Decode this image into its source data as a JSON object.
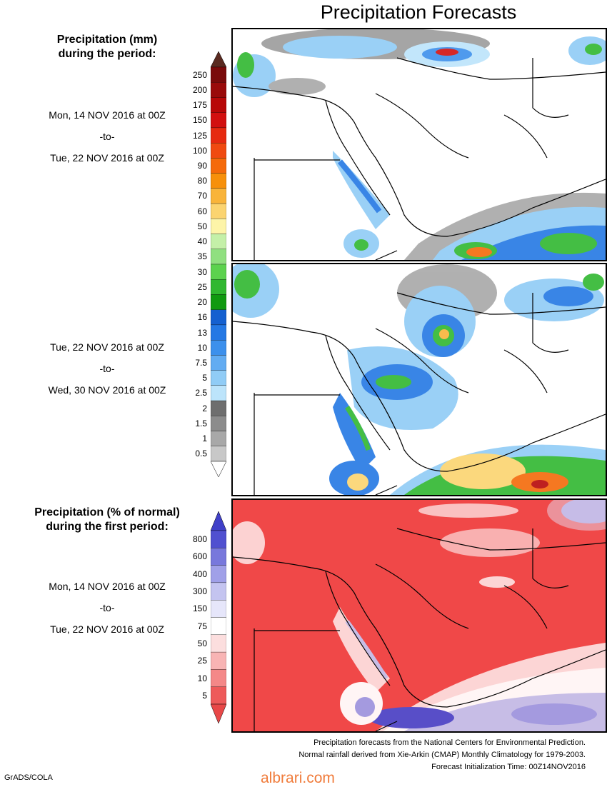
{
  "title": "Precipitation Forecasts",
  "precip_legend": {
    "title_line1": "Precipitation (mm)",
    "title_line2": "during the period:",
    "labels": [
      "250",
      "200",
      "175",
      "150",
      "125",
      "100",
      "90",
      "80",
      "70",
      "60",
      "50",
      "40",
      "35",
      "30",
      "25",
      "20",
      "16",
      "13",
      "10",
      "7.5",
      "5",
      "2.5",
      "2",
      "1.5",
      "1",
      "0.5"
    ],
    "colors": [
      "#7a0a0a",
      "#9a0a0a",
      "#b80808",
      "#d21010",
      "#e62a10",
      "#f04a10",
      "#f56a0a",
      "#f7900a",
      "#f9b43a",
      "#fbd470",
      "#fdf4a8",
      "#c4f0a8",
      "#90e080",
      "#5cd24e",
      "#30b830",
      "#109a10",
      "#1460d0",
      "#2478e4",
      "#3c90ec",
      "#62acf2",
      "#90ccf6",
      "#bce4fb",
      "#6e6e6e",
      "#8c8c8c",
      "#a8a8a8",
      "#c8c8c8"
    ],
    "top_cap_color": "#5a2a20",
    "bottom_cap_color": "#ffffff"
  },
  "period1": {
    "start": "Mon, 14 NOV 2016 at 00Z",
    "sep": "-to-",
    "end": "Tue, 22 NOV 2016 at 00Z"
  },
  "period2": {
    "start": "Tue, 22 NOV 2016 at 00Z",
    "sep": "-to-",
    "end": "Wed, 30 NOV 2016 at 00Z"
  },
  "pct_legend": {
    "title_line1": "Precipitation (% of normal)",
    "title_line2": "during the first period:",
    "labels": [
      "800",
      "600",
      "400",
      "300",
      "150",
      "75",
      "50",
      "25",
      "10",
      "5"
    ],
    "colors": [
      "#5050d0",
      "#7878dc",
      "#a0a0e8",
      "#c4c4f0",
      "#e6e6fa",
      "#ffffff",
      "#fcdede",
      "#f8b4b4",
      "#f48888",
      "#ee5a5a"
    ],
    "top_cap_color": "#4040c8",
    "bottom_cap_color": "#e84848"
  },
  "period3": {
    "start": "Mon, 14 NOV 2016 at 00Z",
    "sep": "-to-",
    "end": "Tue, 22 NOV 2016 at 00Z"
  },
  "footer": {
    "line1": "Precipitation forecasts from the National Centers for Environmental Prediction.",
    "line2": "Normal rainfall derived from Xie-Arkin (CMAP) Monthly Climatology for 1979-2003.",
    "line3": "Forecast Initialization Time: 00Z14NOV2016"
  },
  "credit": "GrADS/COLA",
  "watermark": "albrari.com"
}
